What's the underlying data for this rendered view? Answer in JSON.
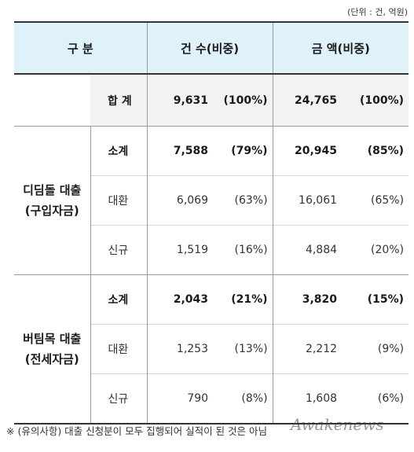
{
  "unit": "(단위 : 건, 억원)",
  "header": {
    "category": "구 분",
    "count": "건 수(비중)",
    "amount": "금 액(비중)"
  },
  "total": {
    "label": "합 계",
    "count": "9,631",
    "count_pct": "(100%)",
    "amount": "24,765",
    "amount_pct": "(100%)"
  },
  "groups": [
    {
      "name_line1": "디딤돌 대출",
      "name_line2": "(구입자금)",
      "rows": [
        {
          "label": "소계",
          "count": "7,588",
          "count_pct": "(79%)",
          "amount": "20,945",
          "amount_pct": "(85%)"
        },
        {
          "label": "대환",
          "count": "6,069",
          "count_pct": "(63%)",
          "amount": "16,061",
          "amount_pct": "(65%)"
        },
        {
          "label": "신규",
          "count": "1,519",
          "count_pct": "(16%)",
          "amount": "4,884",
          "amount_pct": "(20%)"
        }
      ]
    },
    {
      "name_line1": "버팀목 대출",
      "name_line2": "(전세자금)",
      "rows": [
        {
          "label": "소계",
          "count": "2,043",
          "count_pct": "(21%)",
          "amount": "3,820",
          "amount_pct": "(15%)"
        },
        {
          "label": "대환",
          "count": "1,253",
          "count_pct": "(13%)",
          "amount": "2,212",
          "amount_pct": "(9%)"
        },
        {
          "label": "신규",
          "count": "790",
          "count_pct": "(8%)",
          "amount": "1,608",
          "amount_pct": "(6%)"
        }
      ]
    }
  ],
  "note": "※ (유의사항) 대출 신청분이 모두 집행되어 실적이 된 것은 아님",
  "watermark": "Awakenews"
}
